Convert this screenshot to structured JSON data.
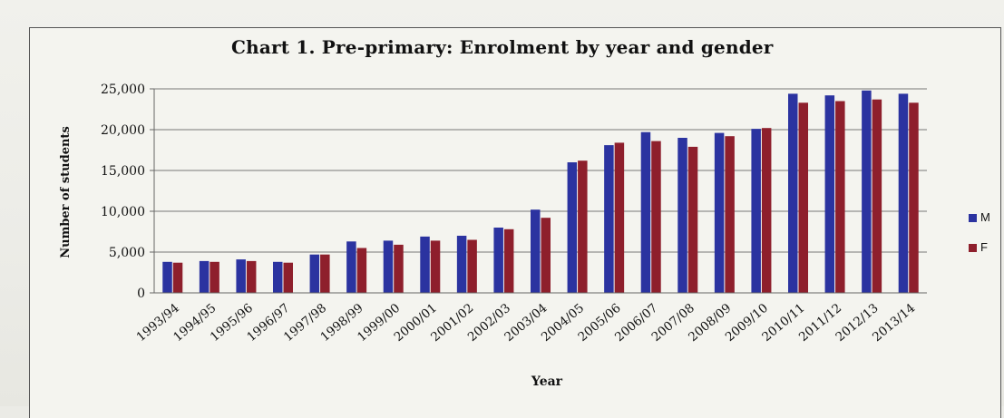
{
  "chart_data": {
    "type": "bar",
    "title": "Chart 1. Pre-primary: Enrolment by year and gender",
    "xlabel": "Year",
    "ylabel": "Number of students",
    "ylim": [
      0,
      25000
    ],
    "yticks": [
      0,
      5000,
      10000,
      15000,
      20000,
      25000
    ],
    "ytick_labels": [
      "0",
      "5,000",
      "10,000",
      "15,000",
      "20,000",
      "25,000"
    ],
    "grid": true,
    "legend_position": "right",
    "categories": [
      "1993/94",
      "1994/95",
      "1995/96",
      "1996/97",
      "1997/98",
      "1998/99",
      "1999/00",
      "2000/01",
      "2001/02",
      "2002/03",
      "2003/04",
      "2004/05",
      "2005/06",
      "2006/07",
      "2007/08",
      "2008/09",
      "2009/10",
      "2010/11",
      "2011/12",
      "2012/13",
      "2013/14"
    ],
    "series": [
      {
        "name": "M",
        "color": "#2b33a0",
        "values": [
          3800,
          3900,
          4100,
          3800,
          4700,
          6300,
          6400,
          6900,
          7000,
          8000,
          10200,
          16000,
          18100,
          19700,
          19000,
          19600,
          20100,
          24400,
          24200,
          24800,
          24400
        ]
      },
      {
        "name": "F",
        "color": "#8e1f2c",
        "values": [
          3700,
          3800,
          3900,
          3700,
          4700,
          5500,
          5900,
          6400,
          6500,
          7800,
          9200,
          16200,
          18400,
          18600,
          17900,
          19200,
          20200,
          23300,
          23500,
          23700,
          23300
        ]
      }
    ]
  }
}
